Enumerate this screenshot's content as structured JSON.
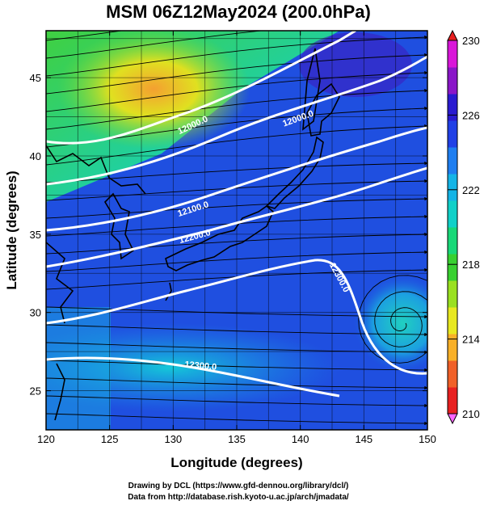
{
  "title": "MSM 06Z12May2024 (200.0hPa)",
  "xaxis": {
    "label": "Longitude (degrees)",
    "range": [
      120,
      150
    ],
    "ticks": [
      "120",
      "125",
      "130",
      "135",
      "140",
      "145",
      "150"
    ]
  },
  "yaxis": {
    "label": "Latitude  (degrees)",
    "range": [
      22.5,
      48
    ],
    "ticks": [
      "25",
      "30",
      "35",
      "40",
      "45"
    ]
  },
  "colorbar": {
    "ticks": [
      "230",
      "226",
      "222",
      "218",
      "214",
      "210"
    ],
    "min": 210,
    "max": 230,
    "colors": [
      "#d916d9",
      "#8a16c8",
      "#2a1ad0",
      "#2040e6",
      "#1e7ef0",
      "#14b4e6",
      "#10d0c8",
      "#18d878",
      "#38d030",
      "#9ae020",
      "#e8e820",
      "#f8b028",
      "#f06028",
      "#e82020"
    ]
  },
  "contours": [
    {
      "label": "12000.0"
    },
    {
      "label": "12000.0"
    },
    {
      "label": "12100.0"
    },
    {
      "label": "12200.0"
    },
    {
      "label": "12300.0"
    },
    {
      "label": "12300.0"
    }
  ],
  "footer": {
    "line1": "Drawing by DCL (https://www.gfd-dennou.org/library/dcl/)",
    "line2": "Data from http://database.rish.kyoto-u.ac.jp/arch/jmadata/"
  }
}
